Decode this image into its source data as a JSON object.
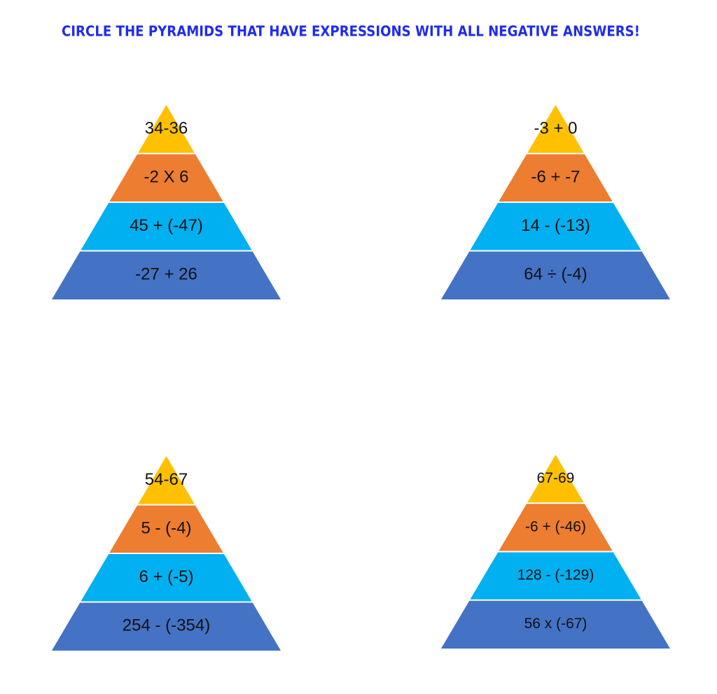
{
  "title": "CIRCLE THE PYRAMIDS THAT HAVE EXPRESSIONS WITH ALL NEGATIVE ANSWERS!",
  "pyramids": [
    {
      "levels": [
        "34-36",
        "-2 X 6",
        "45 + (-47)",
        "-27 + 26"
      ]
    },
    {
      "levels": [
        "-3 + 0",
        "-6 + -7",
        "14 - (-13)",
        "64 ÷ (-4)"
      ]
    },
    {
      "levels": [
        "54-67",
        "5 - (-4)",
        "6 + (-5)",
        "254 - (-354)"
      ]
    },
    {
      "levels": [
        "67-69",
        "-6 + (-46)",
        "128 - (-129)",
        "56 x (-67)"
      ]
    }
  ]
}
